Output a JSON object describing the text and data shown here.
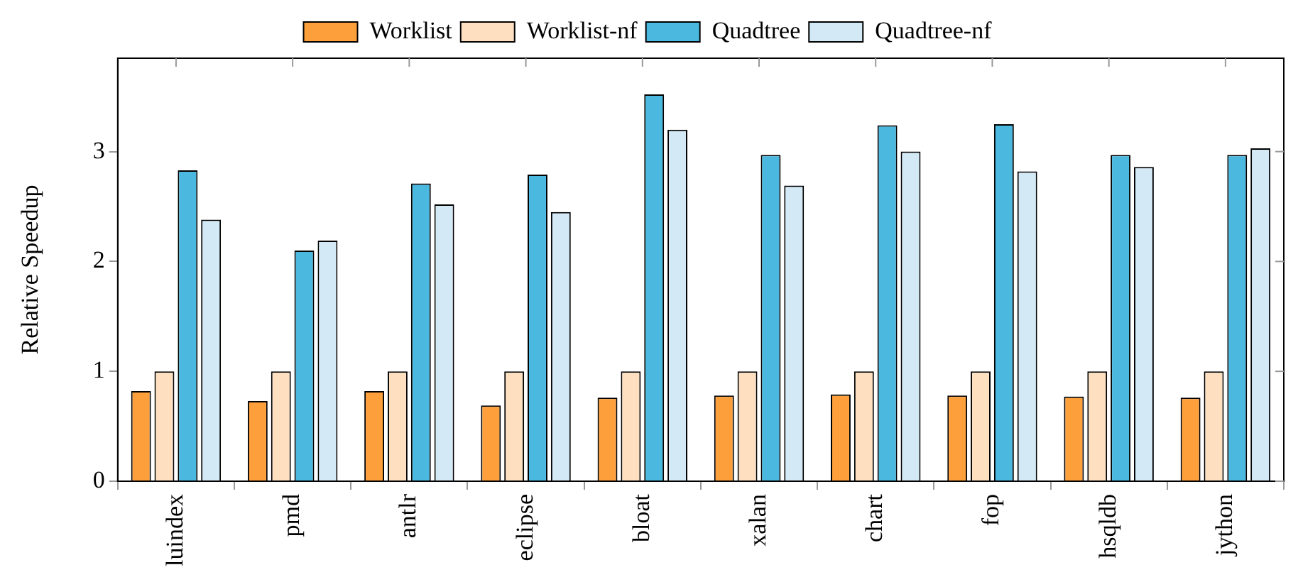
{
  "chart_data": {
    "type": "bar",
    "ylabel": "Relative Speedup",
    "categories": [
      "luindex",
      "pmd",
      "antlr",
      "eclipse",
      "bloat",
      "xalan",
      "chart",
      "fop",
      "hsqldb",
      "jython"
    ],
    "series": [
      {
        "name": "Worklist",
        "color": "#fd9f3b",
        "values": [
          0.82,
          0.73,
          0.82,
          0.69,
          0.76,
          0.78,
          0.79,
          0.78,
          0.77,
          0.76
        ]
      },
      {
        "name": "Worklist-nf",
        "color": "#fee0c1",
        "values": [
          1,
          1,
          1,
          1,
          1,
          1,
          1,
          1,
          1,
          1
        ]
      },
      {
        "name": "Quadtree",
        "color": "#4bb8e0",
        "values": [
          2.83,
          2.1,
          2.71,
          2.79,
          3.52,
          2.97,
          3.24,
          3.25,
          2.97,
          2.97
        ]
      },
      {
        "name": "Quadtree-nf",
        "color": "#d3e9f6",
        "values": [
          2.38,
          2.19,
          2.52,
          2.45,
          3.2,
          2.69,
          3.0,
          2.82,
          2.86,
          3.03
        ]
      }
    ],
    "ylim": [
      0,
      3.85
    ],
    "yticks": [
      0,
      1,
      2,
      3
    ],
    "grid": false,
    "legend": "top"
  }
}
